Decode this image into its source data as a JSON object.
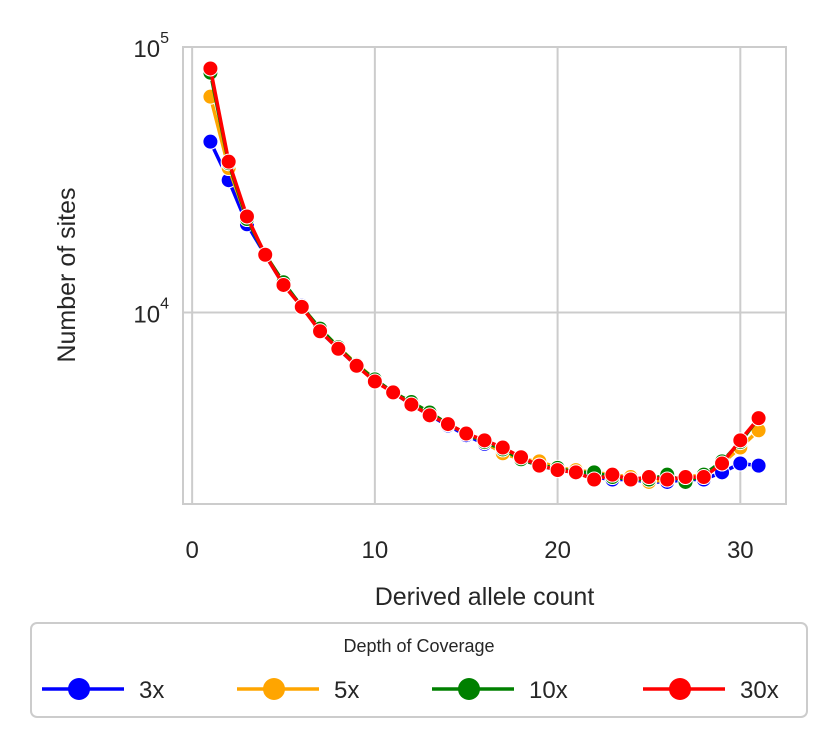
{
  "chart_data": {
    "type": "line",
    "xlabel": "Derived allele count",
    "ylabel": "Number of sites",
    "xlim": [
      -0.5,
      32.5
    ],
    "ylim": [
      1900,
      100000
    ],
    "yscale": "log",
    "xticks": [
      0,
      10,
      20,
      30
    ],
    "yticks": [
      {
        "value": 10000,
        "base": "10",
        "exp": "4"
      },
      {
        "value": 100000,
        "base": "10",
        "exp": "5"
      }
    ],
    "grid": true,
    "legend": {
      "title": "Depth of Coverage",
      "placement": "bottom",
      "columns": 4
    },
    "x": [
      1,
      2,
      3,
      4,
      5,
      6,
      7,
      8,
      9,
      10,
      11,
      12,
      13,
      14,
      15,
      16,
      17,
      18,
      19,
      20,
      21,
      22,
      23,
      24,
      25,
      26,
      27,
      28,
      29,
      30,
      31
    ],
    "series": [
      {
        "name": "3x",
        "color": "#0000ff",
        "values": [
          44000,
          31500,
          21500,
          16500,
          12700,
          10600,
          8500,
          7300,
          6300,
          5600,
          5000,
          4500,
          4100,
          3750,
          3450,
          3200,
          3000,
          2800,
          2650,
          2550,
          2500,
          2400,
          2350,
          2350,
          2300,
          2300,
          2350,
          2350,
          2500,
          2700,
          2650
        ]
      },
      {
        "name": "5x",
        "color": "#ffa500",
        "values": [
          65000,
          35000,
          22500,
          16600,
          12900,
          10500,
          8700,
          7400,
          6400,
          5600,
          5000,
          4600,
          4200,
          3800,
          3500,
          3250,
          2950,
          2800,
          2750,
          2600,
          2550,
          2500,
          2450,
          2400,
          2300,
          2350,
          2400,
          2450,
          2700,
          3100,
          3600
        ]
      },
      {
        "name": "10x",
        "color": "#008000",
        "values": [
          80000,
          36500,
          22500,
          16500,
          13000,
          10500,
          8700,
          7400,
          6350,
          5600,
          5000,
          4600,
          4200,
          3800,
          3500,
          3250,
          3050,
          2800,
          2650,
          2600,
          2500,
          2500,
          2400,
          2350,
          2350,
          2450,
          2300,
          2450,
          2750,
          3250,
          4000
        ]
      },
      {
        "name": "30x",
        "color": "#ff0000",
        "values": [
          83000,
          37000,
          23000,
          16500,
          12700,
          10500,
          8500,
          7300,
          6300,
          5500,
          5000,
          4500,
          4100,
          3800,
          3500,
          3300,
          3100,
          2850,
          2650,
          2550,
          2500,
          2350,
          2450,
          2350,
          2400,
          2350,
          2400,
          2400,
          2700,
          3300,
          4000
        ]
      }
    ]
  }
}
